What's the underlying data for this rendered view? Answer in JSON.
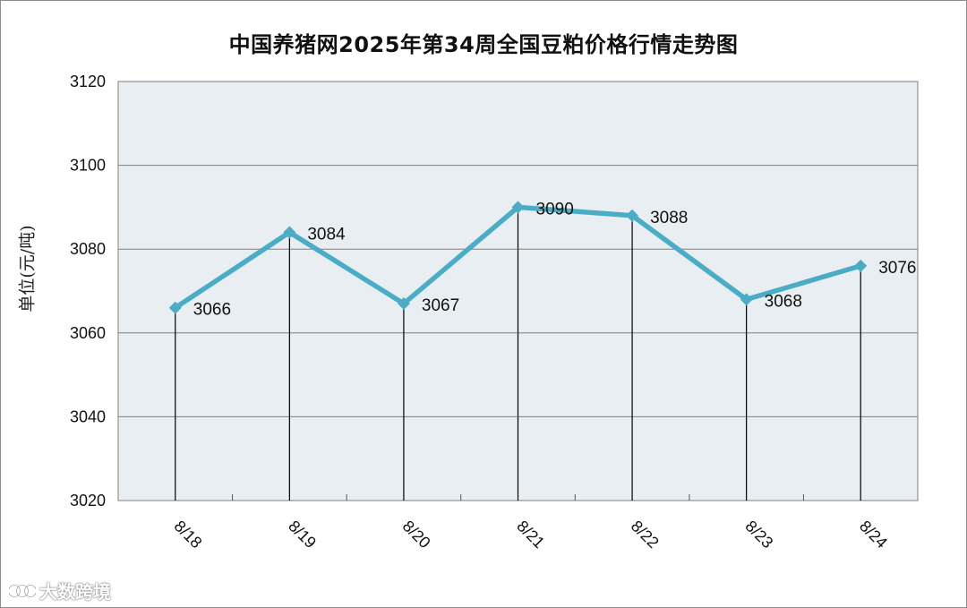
{
  "page": {
    "title": "中国养猪网2025年第34周全国豆粕价格行情走势图",
    "watermark_text": "大数跨境"
  },
  "chart_data": {
    "type": "line",
    "title": "中国养猪网2025年第34周全国豆粕价格行情走势图",
    "xlabel": "",
    "ylabel": "单位(元/吨)",
    "categories": [
      "8/18",
      "8/19",
      "8/20",
      "8/21",
      "8/22",
      "8/23",
      "8/24"
    ],
    "values": [
      3066,
      3084,
      3067,
      3090,
      3088,
      3068,
      3076
    ],
    "ylim": [
      3020,
      3120
    ],
    "yticks": [
      3020,
      3040,
      3060,
      3080,
      3100,
      3120
    ],
    "grid": true,
    "drop_lines": true,
    "data_labels": true,
    "legend": "none",
    "colors": {
      "line": "#4bacc6",
      "plot_background": "#e8eef2",
      "gridline": "#7f7f7f",
      "drop_line": "#000000"
    }
  }
}
